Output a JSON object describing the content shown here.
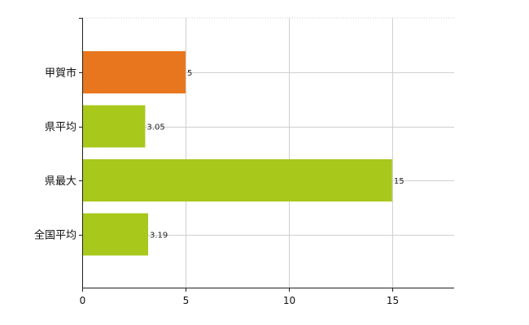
{
  "chart_data": {
    "type": "bar",
    "orientation": "horizontal",
    "categories": [
      "甲賀市",
      "県平均",
      "県最大",
      "全国平均"
    ],
    "values": [
      5,
      3.05,
      15,
      3.19
    ],
    "value_labels": [
      "5",
      "3.05",
      "15",
      "3.19"
    ],
    "title": "",
    "xlabel": "",
    "ylabel": "",
    "xlim": [
      0,
      18
    ],
    "x_ticks": [
      0,
      5,
      10,
      15
    ],
    "x_tick_labels": [
      "0",
      "5",
      "10",
      "15"
    ],
    "grid": true,
    "legend": "none",
    "colors": {
      "highlight": "#E8761E",
      "default": "#A8C81C"
    },
    "bar_colors": [
      "#E8761E",
      "#A8C81C",
      "#A8C81C",
      "#A8C81C"
    ]
  }
}
